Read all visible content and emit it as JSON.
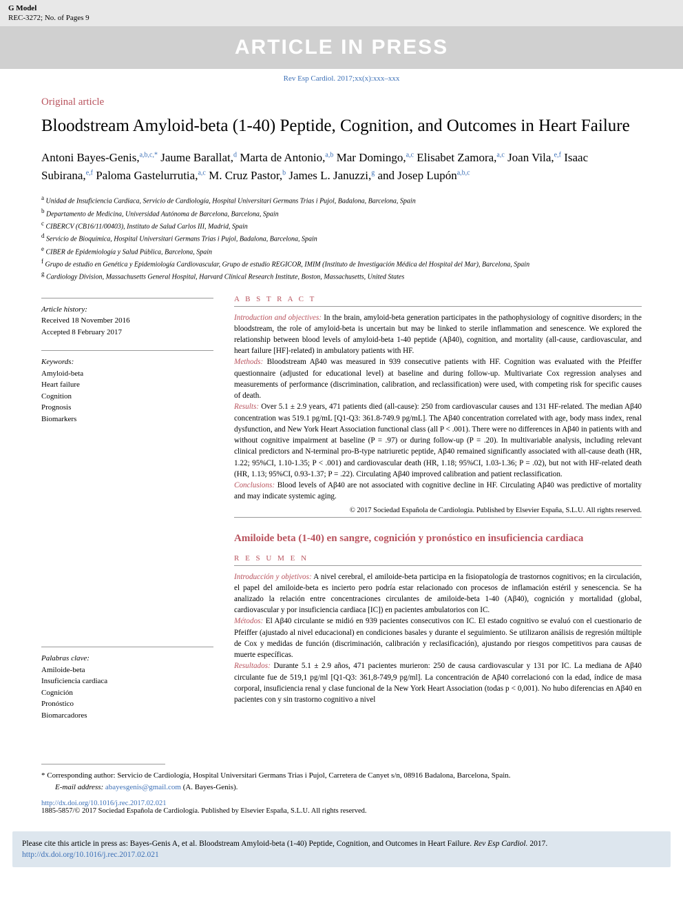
{
  "header": {
    "gmodel": "G Model",
    "ref": "REC-3272; No. of Pages 9",
    "watermark": "ARTICLE IN PRESS",
    "journal_ref": "Rev Esp Cardiol. 2017;xx(x):xxx–xxx"
  },
  "article": {
    "type": "Original article",
    "title": "Bloodstream Amyloid-beta (1-40) Peptide, Cognition, and Outcomes in Heart Failure",
    "authors_html": "Antoni Bayes-Genis,<sup class='sup'>a,b,c,*</sup> Jaume Barallat,<sup class='sup'>d</sup> Marta de Antonio,<sup class='sup'>a,b</sup> Mar Domingo,<sup class='sup'>a,c</sup> Elisabet Zamora,<sup class='sup'>a,c</sup> Joan Vila,<sup class='sup'>e,f</sup> Isaac Subirana,<sup class='sup'>e,f</sup> Paloma Gastelurrutia,<sup class='sup'>a,c</sup> M. Cruz Pastor,<sup class='sup'>b</sup> James L. Januzzi,<sup class='sup'>g</sup> and Josep Lupón<sup class='sup'>a,b,c</sup>",
    "affiliations": [
      {
        "sup": "a",
        "text": "Unidad de Insuficiencia Cardiaca, Servicio de Cardiología, Hospital Universitari Germans Trias i Pujol, Badalona, Barcelona, Spain"
      },
      {
        "sup": "b",
        "text": "Departamento de Medicina, Universidad Autónoma de Barcelona, Barcelona, Spain"
      },
      {
        "sup": "c",
        "text": "CIBERCV (CB16/11/00403), Instituto de Salud Carlos III, Madrid, Spain"
      },
      {
        "sup": "d",
        "text": "Servicio de Bioquímica, Hospital Universitari Germans Trias i Pujol, Badalona, Barcelona, Spain"
      },
      {
        "sup": "e",
        "text": "CIBER de Epidemiología y Salud Pública, Barcelona, Spain"
      },
      {
        "sup": "f",
        "text": "Grupo de estudio en Genética y Epidemiología Cardiovascular, Grupo de estudio REGICOR, IMIM (Instituto de Investigación Médica del Hospital del Mar), Barcelona, Spain"
      },
      {
        "sup": "g",
        "text": "Cardiology Division, Massachusetts General Hospital, Harvard Clinical Research Institute, Boston, Massachusetts, United States"
      }
    ]
  },
  "history": {
    "label": "Article history:",
    "received": "Received 18 November 2016",
    "accepted": "Accepted 8 February 2017"
  },
  "keywords_en": {
    "label": "Keywords:",
    "items": [
      "Amyloid-beta",
      "Heart failure",
      "Cognition",
      "Prognosis",
      "Biomarkers"
    ]
  },
  "keywords_es": {
    "label": "Palabras clave:",
    "items": [
      "Amiloide-beta",
      "Insuficiencia cardiaca",
      "Cognición",
      "Pronóstico",
      "Biomarcadores"
    ]
  },
  "abstract_en": {
    "head": "A B S T R A C T",
    "sections": [
      {
        "label": "Introduction and objectives:",
        "text": " In the brain, amyloid-beta generation participates in the pathophysiology of cognitive disorders; in the bloodstream, the role of amyloid-beta is uncertain but may be linked to sterile inflammation and senescence. We explored the relationship between blood levels of amyloid-beta 1-40 peptide (Aβ40), cognition, and mortality (all-cause, cardiovascular, and heart failure [HF]-related) in ambulatory patients with HF."
      },
      {
        "label": "Methods:",
        "text": " Bloodstream Aβ40 was measured in 939 consecutive patients with HF. Cognition was evaluated with the Pfeiffer questionnaire (adjusted for educational level) at baseline and during follow-up. Multivariate Cox regression analyses and measurements of performance (discrimination, calibration, and reclassification) were used, with competing risk for specific causes of death."
      },
      {
        "label": "Results:",
        "text": " Over 5.1 ± 2.9 years, 471 patients died (all-cause): 250 from cardiovascular causes and 131 HF-related. The median Aβ40 concentration was 519.1 pg/mL [Q1-Q3: 361.8-749.9 pg/mL]. The Aβ40 concentration correlated with age, body mass index, renal dysfunction, and New York Heart Association functional class (all P < .001). There were no differences in Aβ40 in patients with and without cognitive impairment at baseline (P = .97) or during follow-up (P = .20). In multivariable analysis, including relevant clinical predictors and N-terminal pro-B-type natriuretic peptide, Aβ40 remained significantly associated with all-cause death (HR, 1.22; 95%CI, 1.10-1.35; P < .001) and cardiovascular death (HR, 1.18; 95%CI, 1.03-1.36; P = .02), but not with HF-related death (HR, 1.13; 95%CI, 0.93-1.37; P = .22). Circulating Aβ40 improved calibration and patient reclassification."
      },
      {
        "label": "Conclusions:",
        "text": " Blood levels of Aβ40 are not associated with cognitive decline in HF. Circulating Aβ40 was predictive of mortality and may indicate systemic aging."
      }
    ],
    "copyright": "© 2017 Sociedad Española de Cardiología. Published by Elsevier España, S.L.U. All rights reserved."
  },
  "abstract_es": {
    "title": "Amiloide beta (1-40) en sangre, cognición y pronóstico en insuficiencia cardiaca",
    "head": "R E S U M E N",
    "sections": [
      {
        "label": "Introducción y objetivos:",
        "text": " A nivel cerebral, el amiloide-beta participa en la fisiopatología de trastornos cognitivos; en la circulación, el papel del amiloide-beta es incierto pero podría estar relacionado con procesos de inflamación estéril y senescencia. Se ha analizado la relación entre concentraciones circulantes de amiloide-beta 1-40 (Aβ40), cognición y mortalidad (global, cardiovascular y por insuficiencia cardiaca [IC]) en pacientes ambulatorios con IC."
      },
      {
        "label": "Métodos:",
        "text": " El Aβ40 circulante se midió en 939 pacientes consecutivos con IC. El estado cognitivo se evaluó con el cuestionario de Pfeiffer (ajustado al nivel educacional) en condiciones basales y durante el seguimiento. Se utilizaron análisis de regresión múltiple de Cox y medidas de función (discriminación, calibración y reclasificación), ajustando por riesgos competitivos para causas de muerte específicas."
      },
      {
        "label": "Resultados:",
        "text": " Durante 5.1 ± 2.9 años, 471 pacientes murieron: 250 de causa cardiovascular y 131 por IC. La mediana de Aβ40 circulante fue de 519,1 pg/ml [Q1-Q3: 361,8-749,9 pg/ml]. La concentración de Aβ40 correlacionó con la edad, índice de masa corporal, insuficiencia renal y clase funcional de la New York Heart Association (todas p < 0,001). No hubo diferencias en Aβ40 en pacientes con y sin trastorno cognitivo a nivel"
      }
    ]
  },
  "corresponding": {
    "star": "*",
    "text": "Corresponding author: Servicio de Cardiología, Hospital Universitari Germans Trias i Pujol, Carretera de Canyet s/n, 08916 Badalona, Barcelona, Spain.",
    "email_label": "E-mail address:",
    "email": "abayesgenis@gmail.com",
    "email_suffix": " (A. Bayes-Genis)."
  },
  "doi": {
    "url": "http://dx.doi.org/10.1016/j.rec.2017.02.021",
    "issn_line": "1885-5857/© 2017 Sociedad Española de Cardiología. Published by Elsevier España, S.L.U. All rights reserved."
  },
  "cite_box": {
    "prefix": "Please cite this article in press as: Bayes-Genis A, et al. Bloodstream Amyloid-beta (1-40) Peptide, Cognition, and Outcomes in Heart Failure. ",
    "journal": "Rev Esp Cardiol.",
    "year": " 2017. ",
    "url": "http://dx.doi.org/10.1016/j.rec.2017.02.021"
  },
  "colors": {
    "accent": "#b8525c",
    "link": "#3b6fb6",
    "watermark_bg": "#d0d0d0",
    "header_bg": "#e8e8e8",
    "citebox_bg": "#dde6ee"
  }
}
